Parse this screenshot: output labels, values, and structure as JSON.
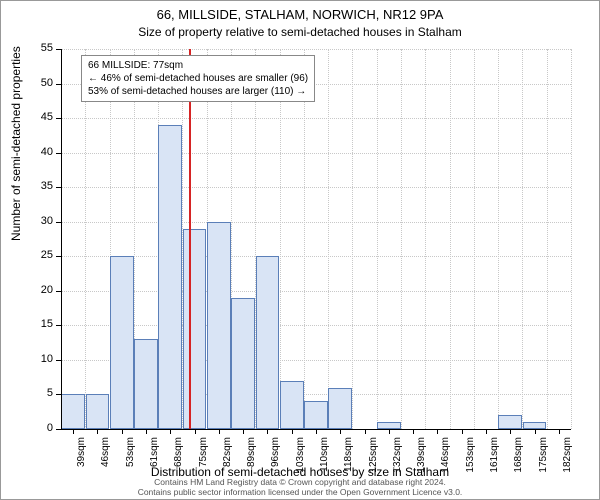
{
  "chart": {
    "type": "histogram",
    "title": "66, MILLSIDE, STALHAM, NORWICH, NR12 9PA",
    "subtitle": "Size of property relative to semi-detached houses in Stalham",
    "y_axis_title": "Number of semi-detached properties",
    "x_axis_title": "Distribution of semi-detached houses by size in Stalham",
    "background_color": "#ffffff",
    "grid_color": "#c8c8c8",
    "bar_fill": "#d9e4f5",
    "bar_stroke": "#5b7fb8",
    "ref_line_color": "#d62424",
    "ylim": [
      0,
      55
    ],
    "ytick_step": 5,
    "x_categories": [
      "39sqm",
      "46sqm",
      "53sqm",
      "61sqm",
      "68sqm",
      "75sqm",
      "82sqm",
      "89sqm",
      "96sqm",
      "103sqm",
      "110sqm",
      "118sqm",
      "125sqm",
      "132sqm",
      "139sqm",
      "146sqm",
      "153sqm",
      "161sqm",
      "168sqm",
      "175sqm",
      "182sqm"
    ],
    "values": [
      5,
      5,
      25,
      13,
      44,
      29,
      30,
      19,
      25,
      7,
      4,
      6,
      0,
      1,
      0,
      0,
      0,
      0,
      2,
      1,
      0
    ],
    "ref_line_category_index": 5,
    "annotation": {
      "line1": "66 MILLSIDE: 77sqm",
      "line2": "← 46% of semi-detached houses are smaller (96)",
      "line3": "53% of semi-detached houses are larger (110) →"
    },
    "footer_line1": "Contains HM Land Registry data © Crown copyright and database right 2024.",
    "footer_line2": "Contains public sector information licensed under the Open Government Licence v3.0.",
    "title_fontsize": 13,
    "subtitle_fontsize": 12,
    "axis_label_fontsize": 12,
    "tick_fontsize": 11,
    "annotation_fontsize": 10,
    "footer_fontsize": 8.5
  }
}
